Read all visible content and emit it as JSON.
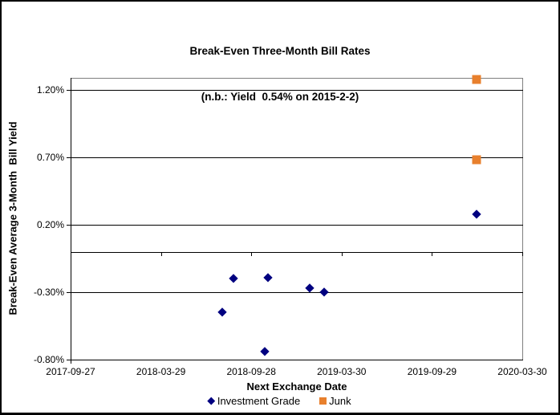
{
  "chart": {
    "title_line1": "Break-Even Three-Month Bill Rates",
    "title_line2": "(n.b.: Yield  0.54% on 2015-2-2)",
    "x_axis_title": "Next Exchange Date",
    "y_axis_title": "Break-Even Average 3-Month  Bill Yield"
  },
  "legend": [
    {
      "label": "Investment Grade",
      "marker": "diamond",
      "color": "#000080"
    },
    {
      "label": "Junk",
      "marker": "square",
      "color": "#E8802D"
    }
  ],
  "chart_data": {
    "type": "scatter",
    "title": "Break-Even Three-Month Bill Rates (n.b.: Yield 0.54% on 2015-2-2)",
    "xlabel": "Next Exchange Date",
    "ylabel": "Break-Even Average 3-Month Bill Yield",
    "units": "percent",
    "grid": "horizontal-only",
    "legend_position": "bottom-center",
    "xlim": [
      "2017-09-27",
      "2020-03-30"
    ],
    "ylim": [
      -0.8,
      1.29
    ],
    "zero_line": 0,
    "x_ticks": [
      "2017-09-27",
      "2018-03-29",
      "2018-09-28",
      "2019-03-30",
      "2019-09-29",
      "2020-03-30"
    ],
    "y_ticks": [
      {
        "value": 1.2,
        "label": "1.20%"
      },
      {
        "value": 0.7,
        "label": "0.70%"
      },
      {
        "value": 0.2,
        "label": "0.20%"
      },
      {
        "value": -0.3,
        "label": "-0.30%"
      },
      {
        "value": -0.8,
        "label": "-0.80%"
      }
    ],
    "series": [
      {
        "name": "Investment Grade",
        "marker": "diamond",
        "color": "#000080",
        "points": [
          {
            "x": "2018-07-31",
            "y": -0.45
          },
          {
            "x": "2018-08-23",
            "y": -0.2
          },
          {
            "x": "2018-10-25",
            "y": -0.74
          },
          {
            "x": "2018-10-31",
            "y": -0.19
          },
          {
            "x": "2019-01-24",
            "y": -0.27
          },
          {
            "x": "2019-02-23",
            "y": -0.3
          },
          {
            "x": "2019-12-28",
            "y": 0.28
          }
        ]
      },
      {
        "name": "Junk",
        "marker": "square",
        "color": "#E8802D",
        "points": [
          {
            "x": "2019-12-28",
            "y": 1.28
          },
          {
            "x": "2019-12-28",
            "y": 0.68
          }
        ]
      }
    ]
  }
}
